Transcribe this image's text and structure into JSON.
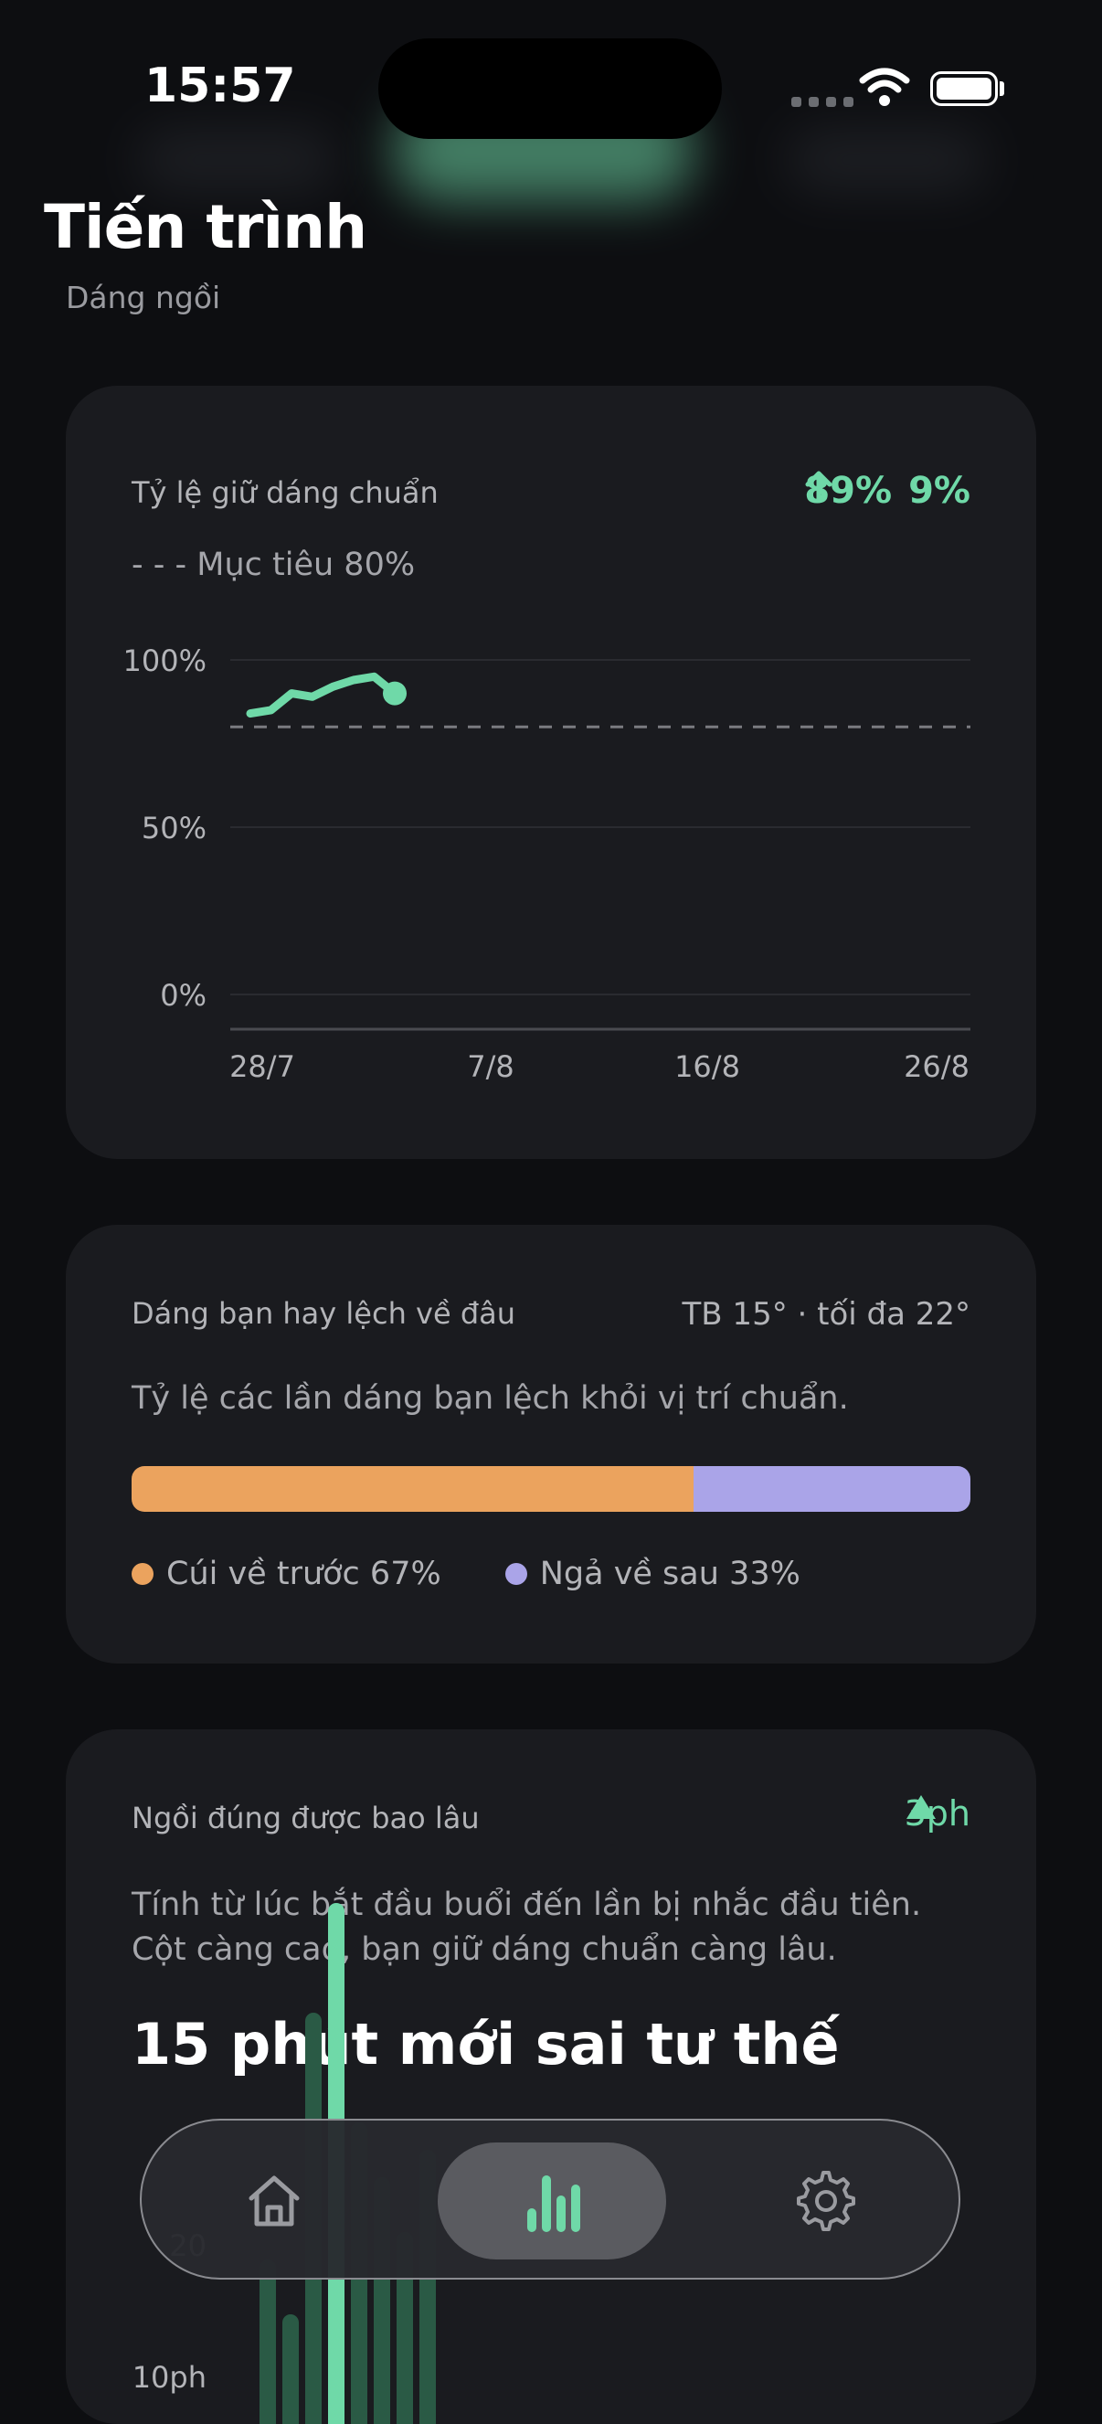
{
  "status_bar": {
    "time": "15:57"
  },
  "header": {
    "title": "Tiến trình",
    "subtitle": "Dáng ngồi"
  },
  "good_posture_card": {
    "label": "Tỷ lệ giữ dáng chuẩn",
    "value": "89%",
    "change": "9%",
    "target_legend": "- - - Mục tiêu 80%",
    "accent_color": "#6fd9a8"
  },
  "deviation_card": {
    "label": "Dáng bạn hay lệch về đâu",
    "average": "TB 15° · tối đa 22°",
    "description": "Tỷ lệ các lần dáng bạn lệch khỏi vị trí chuẩn.",
    "forward_share": 0.67,
    "legend": [
      {
        "label": "Cúi về trước 67%",
        "color": "#eba35e"
      },
      {
        "label": "Ngả về sau 33%",
        "color": "#aaa4e8"
      }
    ]
  },
  "duration_card": {
    "label": "Ngồi đúng được bao lâu",
    "delta": "3ph",
    "description": "Tính từ lúc bắt đầu buổi đến lần bị nhắc đầu tiên. Cột càng cao, bạn giữ dáng chuẩn càng lâu.",
    "headline": "15 phút mới sai tư thế",
    "y_tick_visible": "10ph"
  },
  "tab_bar": {
    "tabs": [
      {
        "name": "home",
        "icon": "home-icon",
        "active": false
      },
      {
        "name": "progress",
        "icon": "bar-chart-icon",
        "active": true
      },
      {
        "name": "settings",
        "icon": "gear-icon",
        "active": false
      }
    ]
  },
  "chart_data": [
    {
      "type": "line",
      "title": "Tỷ lệ giữ dáng chuẩn",
      "x_tick_labels": [
        "28/7",
        "7/8",
        "16/8",
        "26/8"
      ],
      "y_tick_labels": [
        "100%",
        "50%",
        "0%"
      ],
      "ylim": [
        0,
        100
      ],
      "target": 80,
      "series": [
        {
          "x": [
            0,
            1,
            2,
            3,
            4,
            5,
            6,
            7
          ],
          "values": [
            84,
            85,
            90,
            89,
            92,
            94,
            95,
            90
          ]
        }
      ],
      "grid": true
    },
    {
      "type": "bar",
      "title": "Ngồi đúng được bao lâu",
      "y_tick_labels": [
        "10ph"
      ],
      "values": [
        6,
        4,
        15,
        19,
        11,
        9,
        7,
        10
      ],
      "highlight_index": 3,
      "colors": {
        "normal": "#2a5a45",
        "highlight": "#6fd9a8"
      }
    }
  ]
}
